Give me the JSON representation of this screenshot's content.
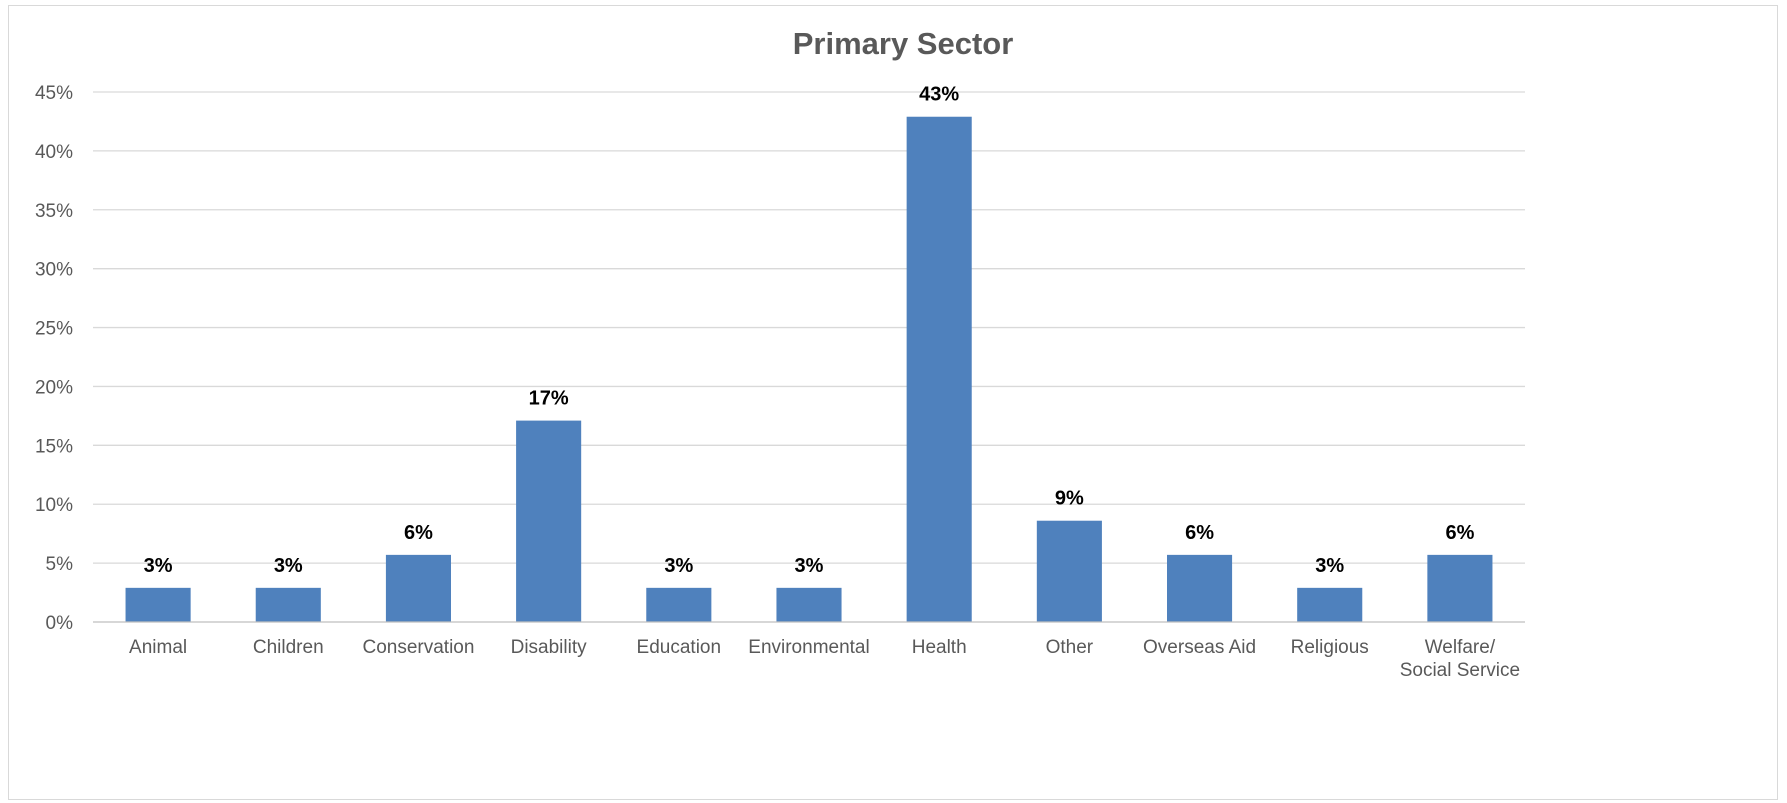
{
  "chart_data": {
    "type": "bar",
    "title": "Primary Sector",
    "categories": [
      "Animal",
      "Children",
      "Conservation",
      "Disability",
      "Education",
      "Environmental",
      "Health",
      "Other",
      "Overseas Aid",
      "Religious",
      "Welfare/Social Service"
    ],
    "values": [
      2.9,
      2.9,
      5.7,
      17.1,
      2.9,
      2.9,
      42.9,
      8.6,
      5.7,
      2.9,
      5.7
    ],
    "data_labels": [
      "3%",
      "3%",
      "6%",
      "17%",
      "3%",
      "3%",
      "43%",
      "9%",
      "6%",
      "3%",
      "6%"
    ],
    "y_ticks": [
      "0%",
      "5%",
      "10%",
      "15%",
      "20%",
      "25%",
      "30%",
      "35%",
      "40%",
      "45%"
    ],
    "ylim": [
      0,
      45
    ],
    "ytick_step": 5,
    "xlabel": "",
    "ylabel": "",
    "grid": true,
    "legend": "none",
    "bar_color": "#4f81bd"
  }
}
